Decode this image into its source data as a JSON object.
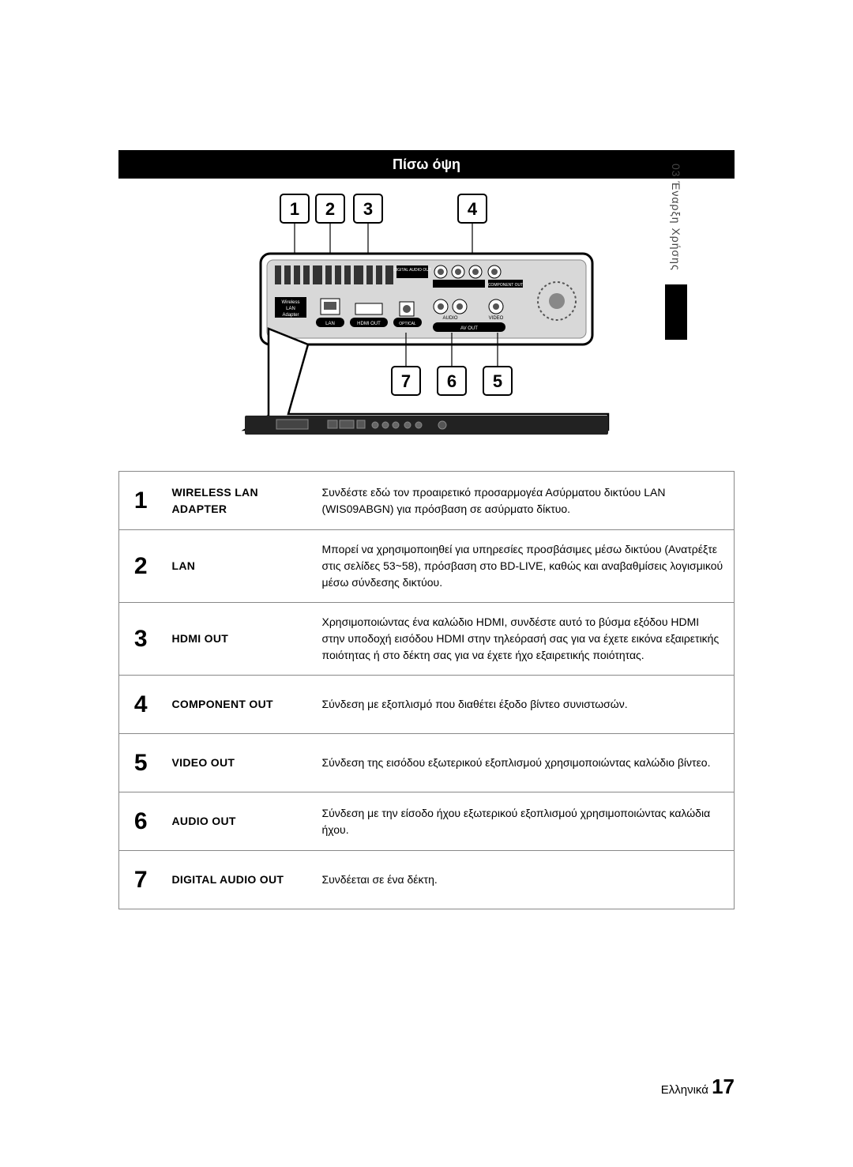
{
  "header": {
    "title": "Πίσω όψη"
  },
  "side_tab": {
    "text": "03   Έναρξη Χρήσης"
  },
  "callouts_top": [
    "1",
    "2",
    "3",
    "4"
  ],
  "callouts_bottom": [
    "7",
    "6",
    "5"
  ],
  "panel_labels": {
    "wlan1": "Wireless",
    "wlan2": "LAN",
    "wlan3": "Adapter",
    "digital_audio": "DIGITAL AUDIO OUT",
    "component": "COMPONENT OUT",
    "lan": "LAN",
    "hdmi": "HDMI OUT",
    "optical": "OPTICAL",
    "audio": "AUDIO",
    "avout": "AV OUT",
    "video": "VIDEO"
  },
  "rows": [
    {
      "n": "1",
      "label": "WIRELESS LAN ADAPTER",
      "desc": "Συνδέστε εδώ τον προαιρετικό προσαρμογέα Ασύρματου δικτύου LAN (WIS09ABGN) για πρόσβαση σε ασύρματο δίκτυο."
    },
    {
      "n": "2",
      "label": "LAN",
      "desc": "Μπορεί να χρησιμοποιηθεί για υπηρεσίες προσβάσιμες μέσω δικτύου (Ανατρέξτε στις σελίδες 53~58), πρόσβαση στο BD-LIVE, καθώς και αναβαθμίσεις λογισμικού μέσω σύνδεσης δικτύου."
    },
    {
      "n": "3",
      "label": "HDMI OUT",
      "desc": "Χρησιμοποιώντας ένα καλώδιο HDMI, συνδέστε αυτό το βύσμα εξόδου HDMI στην υποδοχή εισόδου HDMI στην τηλεόρασή σας για να έχετε εικόνα εξαιρετικής ποιότητας ή στο δέκτη σας για να έχετε ήχο εξαιρετικής ποιότητας."
    },
    {
      "n": "4",
      "label": "COMPONENT OUT",
      "desc": "Σύνδεση με εξοπλισμό που διαθέτει έξοδο βίντεο συνιστωσών."
    },
    {
      "n": "5",
      "label": "VIDEO OUT",
      "desc": "Σύνδεση της εισόδου εξωτερικού εξοπλισμού χρησιμοποιώντας καλώδιο βίντεο."
    },
    {
      "n": "6",
      "label": "AUDIO OUT",
      "desc": "Σύνδεση με την είσοδο ήχου εξωτερικού εξοπλισμού χρησιμοποιώντας καλώδια ήχου."
    },
    {
      "n": "7",
      "label": "DIGITAL AUDIO OUT",
      "desc": "Συνδέεται σε ένα δέκτη."
    }
  ],
  "footer": {
    "lang": "Ελληνικά",
    "page": "17"
  }
}
